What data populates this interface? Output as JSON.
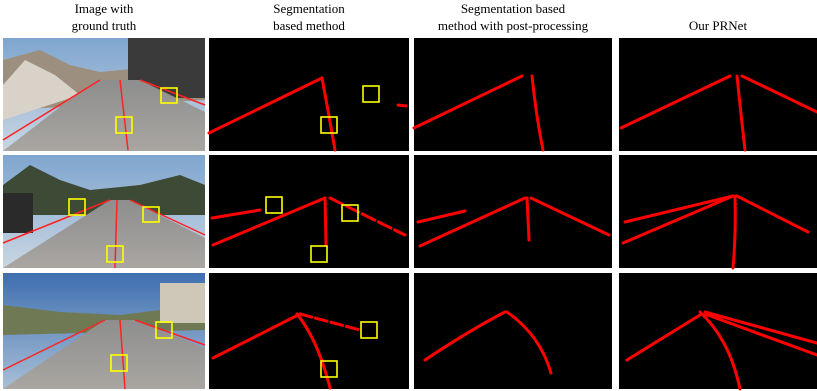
{
  "header": {
    "columns": [
      {
        "lines": [
          "Image with",
          "ground truth"
        ]
      },
      {
        "lines": [
          "Segmentation",
          "based method"
        ]
      },
      {
        "lines": [
          "Segmentation based",
          "method with post-processing"
        ]
      },
      {
        "lines": [
          "Our PRNet"
        ]
      }
    ]
  }
}
